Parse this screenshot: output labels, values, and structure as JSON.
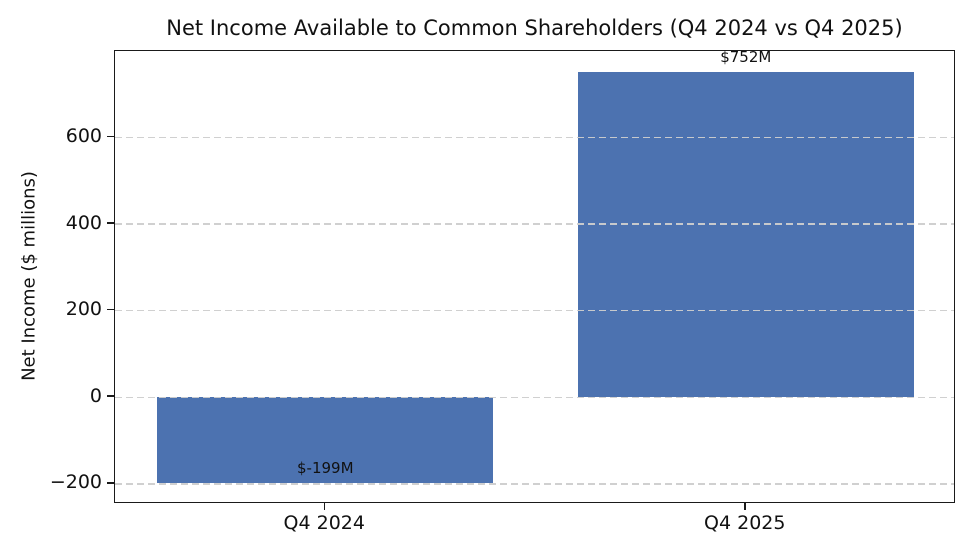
{
  "figure": {
    "background_color": "#ffffff",
    "text_color": "#111111",
    "spine_color": "#1a1a1a"
  },
  "chart_data": {
    "type": "bar",
    "title": "Net Income Available to Common Shareholders (Q4 2024 vs Q4 2025)",
    "ylabel": "Net Income ($ millions)",
    "xlabel": "",
    "categories": [
      "Q4 2024",
      "Q4 2025"
    ],
    "values": [
      -199,
      752
    ],
    "bar_labels": [
      "$-199M",
      "$752M"
    ],
    "bar_color": "#4C72B0",
    "ylim": [
      -246.6,
      799.6
    ],
    "yticks": [
      -200,
      0,
      200,
      400,
      600
    ],
    "ytick_labels": [
      "−200",
      "0",
      "200",
      "400",
      "600"
    ],
    "bar_width_frac": 0.8,
    "grid": true,
    "grid_axis": "y",
    "grid_style": "dashed",
    "grid_color": "#cecece",
    "grid_above_bars": true,
    "legend": null
  }
}
